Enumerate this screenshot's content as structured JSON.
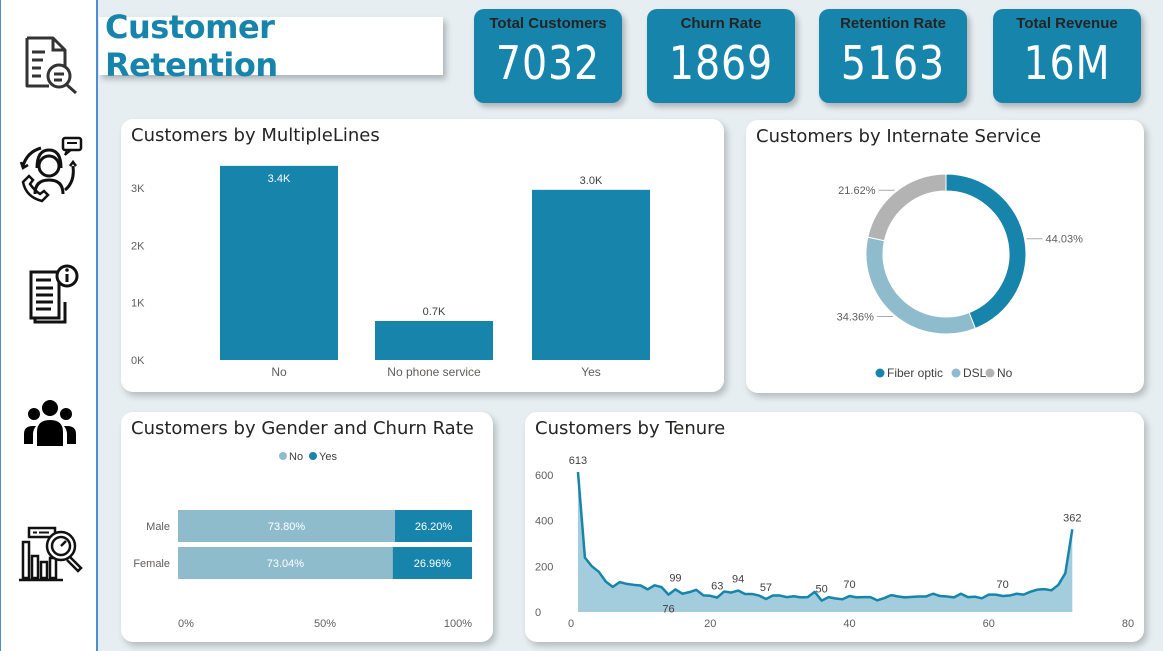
{
  "page": {
    "title": "Customer Retention"
  },
  "sidebar": {
    "items": [
      {
        "icon": "document-search-icon",
        "label": "Overview report"
      },
      {
        "icon": "customer-support-icon",
        "label": "Customer support"
      },
      {
        "icon": "document-info-icon",
        "label": "Details"
      },
      {
        "icon": "users-group-icon",
        "label": "Customers"
      },
      {
        "icon": "chart-analysis-icon",
        "label": "Analysis"
      }
    ]
  },
  "kpis": [
    {
      "label": "Total Customers",
      "value": "7032"
    },
    {
      "label": "Churn Rate",
      "value": "1869"
    },
    {
      "label": "Retention Rate",
      "value": "5163"
    },
    {
      "label": "Total Revenue",
      "value": "16M"
    }
  ],
  "colors": {
    "accent": "#1784ac",
    "light": "#8fbccc",
    "grey": "#b3b3b3",
    "area_fill": "#a3cddd"
  },
  "chart_data": [
    {
      "id": "multiple-lines",
      "type": "bar",
      "title": "Customers by MultipleLines",
      "categories": [
        "No",
        "No phone service",
        "Yes"
      ],
      "values": [
        3385,
        680,
        2967
      ],
      "data_labels": [
        "3.4K",
        "0.7K",
        "3.0K"
      ],
      "yticks": [
        "0K",
        "1K",
        "2K",
        "3K"
      ],
      "ylim": [
        0,
        3400
      ],
      "xlabel": "",
      "ylabel": ""
    },
    {
      "id": "internet-service",
      "type": "pie",
      "variant": "donut",
      "title": "Customers by Internate Service",
      "slices": [
        {
          "label": "Fiber optic",
          "value": 44.03,
          "display": "44.03%"
        },
        {
          "label": "DSL",
          "value": 34.36,
          "display": "34.36%"
        },
        {
          "label": "No",
          "value": 21.62,
          "display": "21.62%"
        }
      ],
      "legend": [
        "Fiber optic",
        "DSL",
        "No"
      ],
      "legend_position": "bottom"
    },
    {
      "id": "gender-churn",
      "type": "bar",
      "variant": "100% stacked horizontal",
      "title": "Customers by Gender and Churn Rate",
      "categories": [
        "Male",
        "Female"
      ],
      "series": [
        {
          "name": "No",
          "values": [
            73.8,
            73.04
          ],
          "labels": [
            "73.80%",
            "73.04%"
          ]
        },
        {
          "name": "Yes",
          "values": [
            26.2,
            26.96
          ],
          "labels": [
            "26.20%",
            "26.96%"
          ]
        }
      ],
      "xticks": [
        "0%",
        "50%",
        "100%"
      ],
      "legend": [
        "No",
        "Yes"
      ],
      "legend_position": "top"
    },
    {
      "id": "tenure",
      "type": "area",
      "title": "Customers by Tenure",
      "x": [
        1,
        2,
        3,
        4,
        5,
        6,
        7,
        8,
        9,
        10,
        11,
        12,
        13,
        14,
        15,
        16,
        17,
        18,
        19,
        20,
        21,
        22,
        23,
        24,
        25,
        26,
        27,
        28,
        29,
        30,
        31,
        32,
        33,
        34,
        35,
        36,
        37,
        38,
        39,
        40,
        41,
        42,
        43,
        44,
        45,
        46,
        47,
        48,
        49,
        50,
        51,
        52,
        53,
        54,
        55,
        56,
        57,
        58,
        59,
        60,
        61,
        62,
        63,
        64,
        65,
        66,
        67,
        68,
        69,
        70,
        71,
        72
      ],
      "values": [
        613,
        238,
        200,
        176,
        133,
        110,
        131,
        123,
        119,
        116,
        99,
        117,
        109,
        76,
        99,
        80,
        87,
        97,
        73,
        71,
        63,
        90,
        85,
        94,
        79,
        79,
        72,
        57,
        72,
        72,
        65,
        69,
        64,
        65,
        88,
        50,
        65,
        59,
        56,
        70,
        64,
        65,
        65,
        51,
        61,
        74,
        68,
        64,
        66,
        68,
        68,
        80,
        70,
        68,
        64,
        80,
        65,
        67,
        60,
        76,
        76,
        70,
        72,
        80,
        76,
        89,
        98,
        100,
        95,
        119,
        170,
        362
      ],
      "data_labels": [
        {
          "x": 1,
          "label": "613"
        },
        {
          "x": 14,
          "label": "76"
        },
        {
          "x": 15,
          "label": "99"
        },
        {
          "x": 21,
          "label": "63"
        },
        {
          "x": 24,
          "label": "94"
        },
        {
          "x": 28,
          "label": "57"
        },
        {
          "x": 36,
          "label": "50"
        },
        {
          "x": 40,
          "label": "70"
        },
        {
          "x": 62,
          "label": "70"
        },
        {
          "x": 72,
          "label": "362"
        }
      ],
      "xticks": [
        "0",
        "20",
        "40",
        "60",
        "80"
      ],
      "yticks": [
        "0",
        "200",
        "400",
        "600"
      ],
      "xlim": [
        0,
        80
      ],
      "ylim": [
        0,
        613
      ]
    }
  ]
}
